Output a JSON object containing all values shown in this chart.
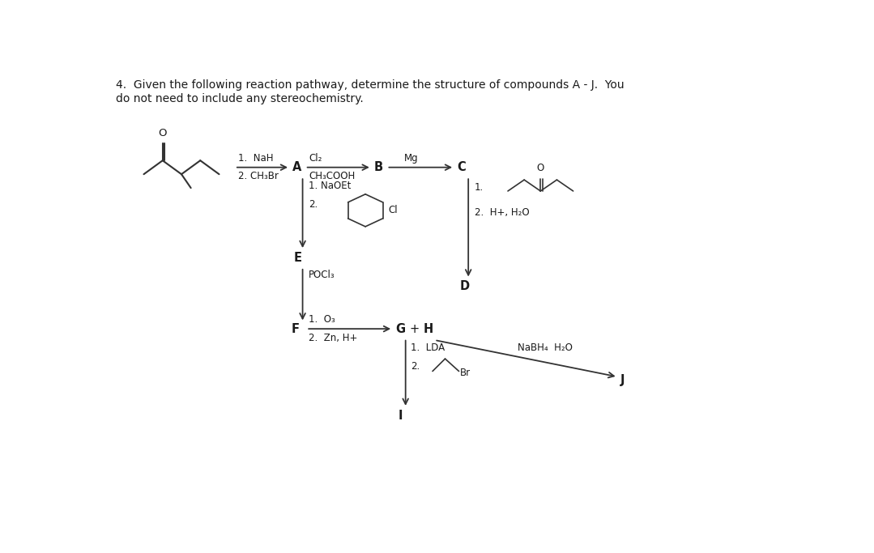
{
  "title_line1": "4.  Given the following reaction pathway, determine the structure of compounds A - J.  You",
  "title_line2": "do not need to include any stereochemistry.",
  "background_color": "#ffffff",
  "text_color": "#1a1a1a",
  "fig_width": 10.79,
  "fig_height": 6.83,
  "label_A": "A",
  "label_B": "B",
  "label_C": "C",
  "label_D": "D",
  "label_E": "E",
  "label_F": "F",
  "label_G": "G",
  "label_H": "H",
  "label_I": "I",
  "label_J": "J",
  "reagent_1_NaH": "1.  NaH",
  "reagent_2_CH3Br": "2. CH₃Br",
  "reagent_Cl2": "Cl₂",
  "reagent_CH3COOH": "CH₃COOH",
  "reagent_Mg": "Mg",
  "reagent_1_": "1.",
  "reagent_2_H2O": "2.  H+, H₂O",
  "reagent_1_NaOEt": "1. NaOEt",
  "reagent_2_": "2.",
  "reagent_POCl3": "POCl₃",
  "reagent_1_O3": "1.  O₃",
  "reagent_2_ZnH": "2.  Zn, H+",
  "reagent_1_LDA": "1.  LDA",
  "reagent_2_Br_text": "2.",
  "reagent_Br_label": "Br",
  "reagent_NaBH4": "NaBH₄  H₂O",
  "reagent_Cl_label": "Cl"
}
